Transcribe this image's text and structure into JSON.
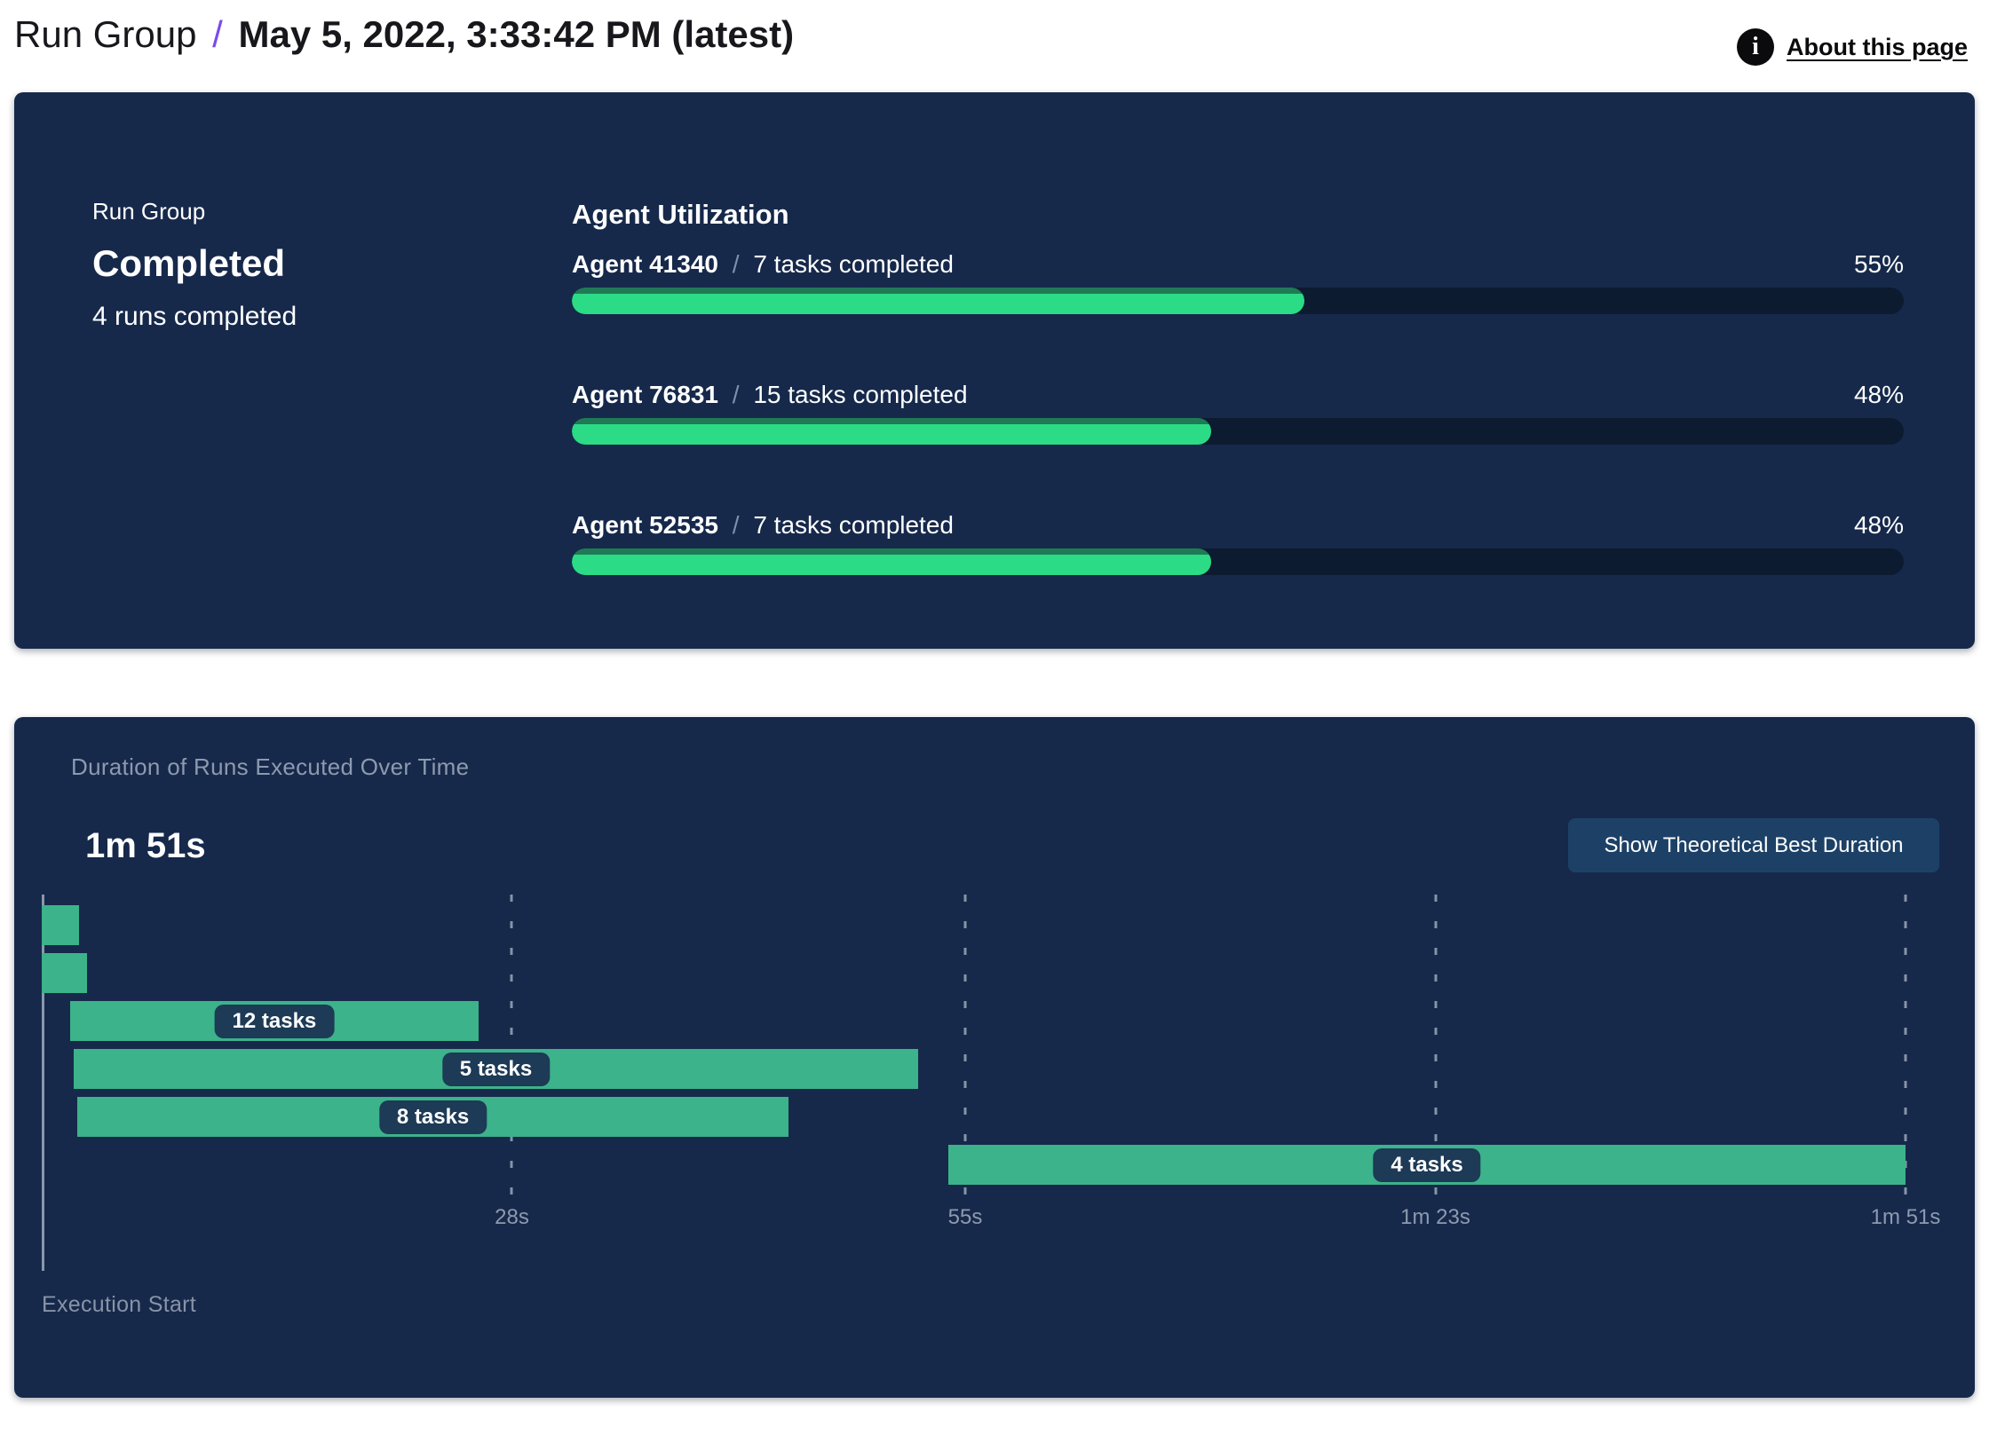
{
  "header": {
    "breadcrumb_root": "Run Group",
    "separator": "/",
    "title": "May 5, 2022, 3:33:42 PM (latest)",
    "about_link_label": "About this page",
    "info_icon_glyph": "i"
  },
  "summary_panel": {
    "kicker": "Run Group",
    "status": "Completed",
    "runs_completed": "4 runs completed",
    "utilization": {
      "heading": "Agent Utilization",
      "agents": [
        {
          "name": "Agent 41340",
          "separator": "/",
          "tasks": "7 tasks completed",
          "percent": 55,
          "percent_label": "55%"
        },
        {
          "name": "Agent 76831",
          "separator": "/",
          "tasks": "15 tasks completed",
          "percent": 48,
          "percent_label": "48%"
        },
        {
          "name": "Agent 52535",
          "separator": "/",
          "tasks": "7 tasks completed",
          "percent": 48,
          "percent_label": "48%"
        }
      ]
    }
  },
  "duration_panel": {
    "title": "Duration of Runs Executed Over Time",
    "total_duration": "1m 51s",
    "button_label": "Show Theoretical Best Duration",
    "axis_caption": "Execution Start"
  },
  "chart_data": {
    "type": "gantt",
    "title": "Duration of Runs Executed Over Time",
    "total_duration_label": "1m 51s",
    "x_unit": "seconds",
    "x_domain": [
      0,
      111
    ],
    "x_ticks": [
      {
        "value": 28,
        "label": "28s"
      },
      {
        "value": 55,
        "label": "55s"
      },
      {
        "value": 83,
        "label": "1m 23s"
      },
      {
        "value": 111,
        "label": "1m 51s"
      }
    ],
    "grid": "dashed-vertical",
    "runs": [
      {
        "start": 0,
        "end": 2.2,
        "label": ""
      },
      {
        "start": 0,
        "end": 2.7,
        "label": ""
      },
      {
        "start": 1.7,
        "end": 26,
        "label": "12 tasks"
      },
      {
        "start": 1.9,
        "end": 52.2,
        "label": "5 tasks"
      },
      {
        "start": 2.1,
        "end": 44.5,
        "label": "8 tasks"
      },
      {
        "start": 54,
        "end": 111,
        "label": "4 tasks"
      }
    ]
  },
  "colors": {
    "panel_bg": "#16294b",
    "header_text": "#17171c",
    "accent_purple": "#7a4bee",
    "progress_track": "#0d1b30",
    "progress_fill": "#2bdb86",
    "progress_fill_edge": "#1f7a55",
    "gantt_bar": "#3cb38a",
    "pill_bg": "#1d3a56",
    "button_bg": "#1d4166",
    "muted_text": "#8d9aae",
    "axis_caption": "#8793a7",
    "axis_line": "#9fabbc"
  }
}
